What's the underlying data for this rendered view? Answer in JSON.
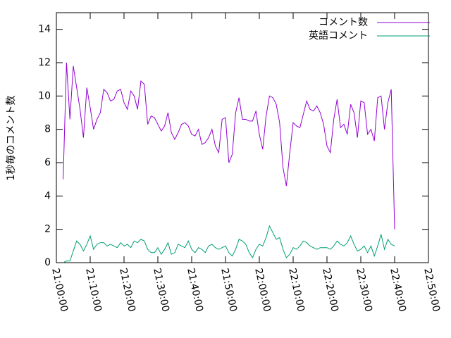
{
  "chart_data": {
    "type": "line",
    "ylabel": "1秒毎のコメント数",
    "x": [
      "21:02:00",
      "21:03:00",
      "21:04:00",
      "21:05:00",
      "21:06:00",
      "21:07:00",
      "21:08:00",
      "21:09:00",
      "21:10:00",
      "21:11:00",
      "21:12:00",
      "21:13:00",
      "21:14:00",
      "21:15:00",
      "21:16:00",
      "21:17:00",
      "21:18:00",
      "21:19:00",
      "21:20:00",
      "21:21:00",
      "21:22:00",
      "21:23:00",
      "21:24:00",
      "21:25:00",
      "21:26:00",
      "21:27:00",
      "21:28:00",
      "21:29:00",
      "21:30:00",
      "21:31:00",
      "21:32:00",
      "21:33:00",
      "21:34:00",
      "21:35:00",
      "21:36:00",
      "21:37:00",
      "21:38:00",
      "21:39:00",
      "21:40:00",
      "21:41:00",
      "21:42:00",
      "21:43:00",
      "21:44:00",
      "21:45:00",
      "21:46:00",
      "21:47:00",
      "21:48:00",
      "21:49:00",
      "21:50:00",
      "21:51:00",
      "21:52:00",
      "21:53:00",
      "21:54:00",
      "21:55:00",
      "21:56:00",
      "21:57:00",
      "21:58:00",
      "21:59:00",
      "22:00:00",
      "22:01:00",
      "22:02:00",
      "22:03:00",
      "22:04:00",
      "22:05:00",
      "22:06:00",
      "22:07:00",
      "22:08:00",
      "22:09:00",
      "22:10:00",
      "22:11:00",
      "22:12:00",
      "22:13:00",
      "22:14:00",
      "22:15:00",
      "22:16:00",
      "22:17:00",
      "22:18:00",
      "22:19:00",
      "22:20:00",
      "22:21:00",
      "22:22:00",
      "22:23:00",
      "22:24:00",
      "22:25:00",
      "22:26:00",
      "22:27:00",
      "22:28:00",
      "22:29:00",
      "22:30:00",
      "22:31:00",
      "22:32:00",
      "22:33:00",
      "22:34:00",
      "22:35:00",
      "22:36:00",
      "22:37:00",
      "22:38:00",
      "22:39:00",
      "22:40:00"
    ],
    "series": [
      {
        "name": "コメント数",
        "color": "#9400d3",
        "values": [
          5.0,
          12.0,
          8.6,
          11.8,
          10.5,
          9.2,
          7.5,
          10.5,
          9.3,
          8.0,
          8.6,
          9.0,
          10.4,
          10.2,
          9.7,
          9.8,
          10.3,
          10.4,
          9.6,
          9.2,
          10.3,
          10.0,
          9.2,
          10.9,
          10.7,
          8.3,
          8.8,
          8.7,
          8.3,
          7.9,
          8.2,
          9.0,
          7.8,
          7.4,
          7.8,
          8.3,
          8.4,
          8.2,
          7.7,
          7.6,
          8.0,
          7.1,
          7.2,
          7.5,
          8.0,
          7.0,
          6.6,
          8.6,
          8.7,
          6.0,
          6.5,
          9.0,
          9.9,
          8.6,
          8.6,
          8.5,
          8.5,
          9.1,
          7.7,
          6.8,
          8.8,
          10.0,
          9.9,
          9.5,
          8.4,
          5.7,
          4.6,
          6.6,
          8.4,
          8.2,
          8.1,
          8.9,
          9.7,
          9.2,
          9.1,
          9.4,
          9.0,
          8.3,
          7.0,
          6.6,
          8.6,
          9.8,
          8.1,
          8.3,
          7.7,
          9.5,
          9.0,
          7.5,
          9.7,
          9.6,
          7.7,
          8.0,
          7.3,
          9.9,
          10.0,
          8.0,
          9.6,
          10.4,
          2.0
        ]
      },
      {
        "name": "英語コメント",
        "color": "#009e73",
        "values": [
          0.0,
          0.1,
          0.1,
          0.7,
          1.3,
          1.1,
          0.7,
          1.1,
          1.6,
          0.8,
          1.1,
          1.2,
          1.2,
          1.0,
          1.1,
          1.0,
          0.9,
          1.2,
          1.0,
          1.1,
          0.9,
          1.3,
          1.2,
          1.4,
          1.3,
          0.8,
          0.6,
          0.6,
          0.9,
          0.5,
          0.8,
          1.2,
          0.5,
          0.6,
          1.1,
          1.0,
          0.9,
          1.3,
          0.8,
          0.6,
          0.9,
          0.8,
          0.6,
          1.0,
          1.1,
          0.9,
          0.8,
          0.9,
          1.0,
          0.6,
          0.4,
          0.8,
          1.4,
          1.3,
          1.1,
          0.6,
          0.3,
          0.8,
          1.1,
          1.0,
          1.5,
          2.2,
          1.8,
          1.4,
          1.5,
          0.8,
          0.3,
          0.5,
          0.9,
          0.8,
          1.0,
          1.3,
          1.2,
          1.0,
          0.9,
          0.8,
          0.9,
          0.9,
          0.9,
          0.8,
          1.0,
          1.3,
          1.1,
          1.0,
          1.2,
          1.6,
          1.1,
          0.7,
          0.8,
          1.0,
          0.6,
          1.0,
          0.4,
          1.0,
          1.7,
          0.8,
          1.4,
          1.1,
          1.0
        ]
      }
    ],
    "xlim": [
      "21:00:00",
      "22:50:00"
    ],
    "xticks": [
      "21:00:00",
      "21:10:00",
      "21:20:00",
      "21:30:00",
      "21:40:00",
      "21:50:00",
      "22:00:00",
      "22:10:00",
      "22:20:00",
      "22:30:00",
      "22:40:00",
      "22:50:00"
    ],
    "ylim": [
      0,
      15
    ],
    "yticks": [
      0,
      2,
      4,
      6,
      8,
      10,
      12,
      14
    ],
    "legend": "top-right"
  }
}
